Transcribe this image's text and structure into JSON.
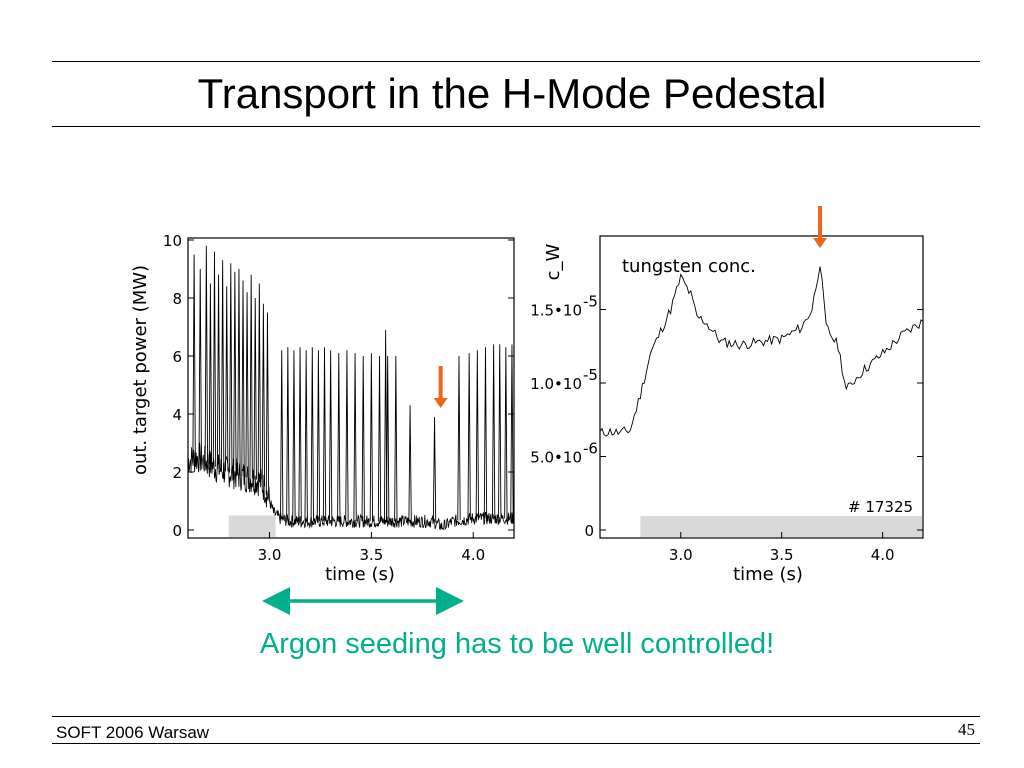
{
  "slide": {
    "title": "Transport in the H-Mode Pedestal",
    "caption": "Argon seeding has to be well controlled!",
    "footer_left": "SOFT 2006 Warsaw",
    "page_number": "45",
    "colors": {
      "caption": "#00b08c",
      "arrow": "#f06418",
      "shade": "#d9d9d9"
    }
  },
  "chart_data": [
    {
      "type": "line",
      "ylabel": "out. target power (MW)",
      "xlabel": "time (s)",
      "xlim": [
        2.6,
        4.2
      ],
      "ylim": [
        0,
        10
      ],
      "xticks": [
        "3.0",
        "3.5",
        "4.0"
      ],
      "yticks": [
        "0",
        "2",
        "4",
        "6",
        "8",
        "10"
      ],
      "shaded_bar": {
        "x_start": 2.8,
        "x_end": 3.03,
        "y_top": 0.5
      },
      "marker_arrow_x": 3.84,
      "series": [
        {
          "x": [
            2.6,
            2.65,
            2.7,
            2.75,
            2.8,
            2.85,
            2.9,
            2.95,
            2.98,
            3.0,
            3.02,
            3.05,
            3.1,
            3.2,
            3.3,
            3.4,
            3.5,
            3.6,
            3.7,
            3.8,
            3.85,
            3.9,
            4.0,
            4.1,
            4.2
          ],
          "y": [
            2.4,
            2.5,
            2.3,
            2.1,
            2.0,
            1.9,
            1.8,
            1.7,
            1.4,
            1.0,
            0.6,
            0.4,
            0.3,
            0.3,
            0.3,
            0.3,
            0.3,
            0.3,
            0.3,
            0.3,
            0.1,
            0.3,
            0.4,
            0.4,
            0.4
          ],
          "spikes": [
            [
              2.63,
              9.5
            ],
            [
              2.66,
              9.0
            ],
            [
              2.69,
              9.8
            ],
            [
              2.71,
              8.5
            ],
            [
              2.73,
              9.6
            ],
            [
              2.75,
              8.8
            ],
            [
              2.77,
              9.3
            ],
            [
              2.79,
              8.4
            ],
            [
              2.81,
              9.2
            ],
            [
              2.83,
              8.9
            ],
            [
              2.85,
              9.0
            ],
            [
              2.87,
              8.6
            ],
            [
              2.89,
              8.2
            ],
            [
              2.91,
              8.8
            ],
            [
              2.93,
              8.0
            ],
            [
              2.95,
              8.5
            ],
            [
              2.97,
              7.8
            ],
            [
              2.99,
              7.5
            ],
            [
              3.06,
              6.2
            ],
            [
              3.09,
              6.3
            ],
            [
              3.12,
              6.2
            ],
            [
              3.15,
              6.3
            ],
            [
              3.18,
              6.2
            ],
            [
              3.21,
              6.3
            ],
            [
              3.24,
              6.2
            ],
            [
              3.27,
              6.3
            ],
            [
              3.3,
              6.2
            ],
            [
              3.34,
              6.1
            ],
            [
              3.38,
              6.2
            ],
            [
              3.42,
              6.1
            ],
            [
              3.46,
              6.0
            ],
            [
              3.5,
              6.1
            ],
            [
              3.54,
              6.0
            ],
            [
              3.58,
              6.0
            ],
            [
              3.62,
              6.0
            ],
            [
              3.57,
              6.9
            ],
            [
              3.69,
              4.3
            ],
            [
              3.81,
              3.9
            ],
            [
              3.93,
              6.0
            ],
            [
              3.98,
              6.1
            ],
            [
              4.02,
              6.2
            ],
            [
              4.06,
              6.3
            ],
            [
              4.1,
              6.4
            ],
            [
              4.13,
              6.4
            ],
            [
              4.16,
              6.3
            ],
            [
              4.19,
              6.4
            ]
          ]
        }
      ]
    },
    {
      "type": "line",
      "ylabel": "c_W",
      "xlabel": "time (s)",
      "annotation": "tungsten conc.",
      "shot_label": "# 17325",
      "xlim": [
        2.6,
        4.2
      ],
      "ylim": [
        0,
        2e-05
      ],
      "xticks": [
        "3.0",
        "3.5",
        "4.0"
      ],
      "yticks": [
        {
          "value": 0,
          "label": "0"
        },
        {
          "value": 5e-06,
          "label": "5.0•10",
          "exp": "-6"
        },
        {
          "value": 1e-05,
          "label": "1.0•10",
          "exp": "-5"
        },
        {
          "value": 1.5e-05,
          "label": "1.5•10",
          "exp": "-5"
        }
      ],
      "shaded_bar": {
        "x_start": 2.8,
        "x_end": 4.2,
        "y_top": 1.1e-06
      },
      "marker_arrow_x": 3.69,
      "series": [
        {
          "x": [
            2.6,
            2.65,
            2.7,
            2.75,
            2.8,
            2.85,
            2.9,
            2.95,
            3.0,
            3.05,
            3.08,
            3.12,
            3.2,
            3.3,
            3.4,
            3.5,
            3.6,
            3.65,
            3.69,
            3.72,
            3.78,
            3.82,
            3.86,
            3.9,
            4.0,
            4.1,
            4.2
          ],
          "y": [
            6.6e-06,
            6.7e-06,
            6.6e-06,
            6.8e-06,
            9.2e-06,
            1.2e-05,
            1.35e-05,
            1.5e-05,
            1.72e-05,
            1.6e-05,
            1.45e-05,
            1.42e-05,
            1.28e-05,
            1.26e-05,
            1.28e-05,
            1.3e-05,
            1.38e-05,
            1.5e-05,
            1.82e-05,
            1.38e-05,
            1.25e-05,
            9.5e-06,
            1.02e-05,
            1.08e-05,
            1.2e-05,
            1.33e-05,
            1.42e-05
          ]
        }
      ]
    }
  ]
}
